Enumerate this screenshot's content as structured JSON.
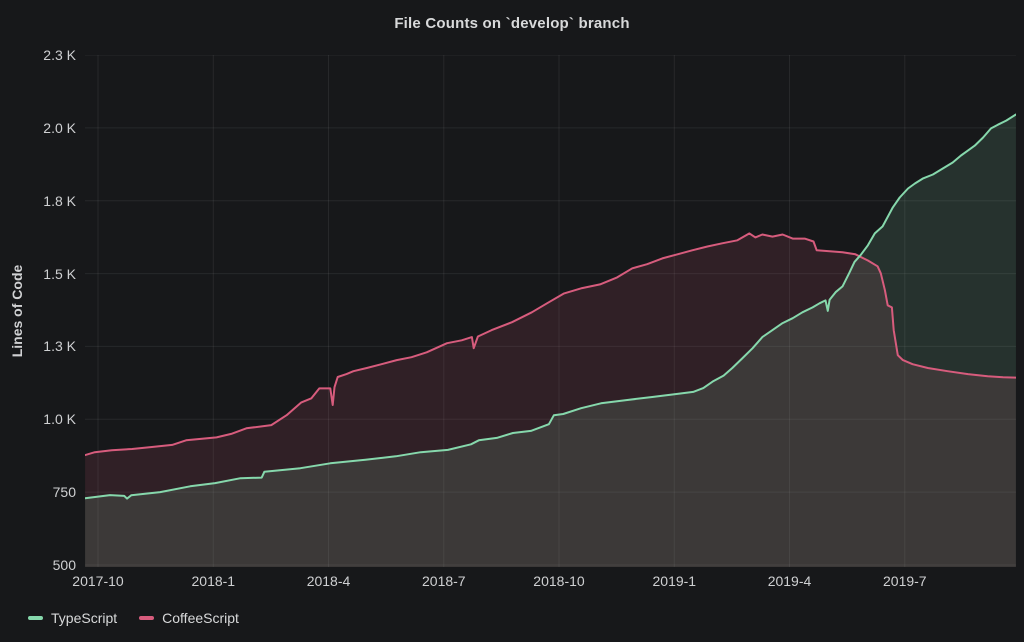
{
  "title": "File Counts on `develop` branch",
  "colors": {
    "background": "#17181a",
    "grid": "rgba(255,255,255,0.07)",
    "text": "#d8d9da",
    "tick_text": "#cfd0d2",
    "typescript_green": "#86d8ac",
    "coffeescript_pink": "#d75c7d"
  },
  "chart_data": {
    "type": "area",
    "title": "File Counts on `develop` branch",
    "xlabel": "",
    "ylabel": "Lines of Code",
    "grid": true,
    "legend_position": "bottom-left",
    "x_domain": [
      2017.7218,
      2019.7413
    ],
    "y_domain": [
      500,
      2250
    ],
    "x_ticks": [
      {
        "t": 2017.75,
        "label": "2017-10"
      },
      {
        "t": 2018.0,
        "label": "2018-1"
      },
      {
        "t": 2018.25,
        "label": "2018-4"
      },
      {
        "t": 2018.5,
        "label": "2018-7"
      },
      {
        "t": 2018.75,
        "label": "2018-10"
      },
      {
        "t": 2019.0,
        "label": "2019-1"
      },
      {
        "t": 2019.25,
        "label": "2019-4"
      },
      {
        "t": 2019.5,
        "label": "2019-7"
      }
    ],
    "y_ticks": [
      {
        "v": 500,
        "label": "500"
      },
      {
        "v": 750,
        "label": "750"
      },
      {
        "v": 1000,
        "label": "1.0 K"
      },
      {
        "v": 1250,
        "label": "1.3 K"
      },
      {
        "v": 1500,
        "label": "1.5 K"
      },
      {
        "v": 1750,
        "label": "1.8 K"
      },
      {
        "v": 2000,
        "label": "2.0 K"
      },
      {
        "v": 2250,
        "label": "2.3 K"
      }
    ],
    "series": [
      {
        "name": "TypeScript",
        "color": "#86d8ac",
        "fill_opacity": 0.14,
        "points": [
          [
            2017.722,
            729
          ],
          [
            2017.776,
            740
          ],
          [
            2017.807,
            737
          ],
          [
            2017.813,
            728
          ],
          [
            2017.822,
            739
          ],
          [
            2017.885,
            750
          ],
          [
            2017.95,
            770
          ],
          [
            2018.004,
            781
          ],
          [
            2018.059,
            798
          ],
          [
            2018.105,
            800
          ],
          [
            2018.111,
            820
          ],
          [
            2018.189,
            832
          ],
          [
            2018.254,
            849
          ],
          [
            2018.33,
            861
          ],
          [
            2018.396,
            873
          ],
          [
            2018.45,
            887
          ],
          [
            2018.509,
            895
          ],
          [
            2018.559,
            914
          ],
          [
            2018.576,
            928
          ],
          [
            2018.615,
            936
          ],
          [
            2018.65,
            953
          ],
          [
            2018.689,
            960
          ],
          [
            2018.728,
            983
          ],
          [
            2018.739,
            1014
          ],
          [
            2018.759,
            1018
          ],
          [
            2018.798,
            1038
          ],
          [
            2018.841,
            1055
          ],
          [
            2018.896,
            1066
          ],
          [
            2018.95,
            1076
          ],
          [
            2019.007,
            1087
          ],
          [
            2019.041,
            1094
          ],
          [
            2019.063,
            1107
          ],
          [
            2019.085,
            1131
          ],
          [
            2019.107,
            1150
          ],
          [
            2019.126,
            1176
          ],
          [
            2019.148,
            1210
          ],
          [
            2019.17,
            1244
          ],
          [
            2019.191,
            1282
          ],
          [
            2019.213,
            1306
          ],
          [
            2019.235,
            1330
          ],
          [
            2019.257,
            1347
          ],
          [
            2019.278,
            1367
          ],
          [
            2019.3,
            1384
          ],
          [
            2019.315,
            1398
          ],
          [
            2019.328,
            1408
          ],
          [
            2019.333,
            1372
          ],
          [
            2019.337,
            1410
          ],
          [
            2019.35,
            1436
          ],
          [
            2019.365,
            1456
          ],
          [
            2019.38,
            1503
          ],
          [
            2019.391,
            1540
          ],
          [
            2019.404,
            1563
          ],
          [
            2019.42,
            1597
          ],
          [
            2019.435,
            1638
          ],
          [
            2019.452,
            1662
          ],
          [
            2019.474,
            1727
          ],
          [
            2019.489,
            1761
          ],
          [
            2019.507,
            1792
          ],
          [
            2019.522,
            1809
          ],
          [
            2019.539,
            1826
          ],
          [
            2019.561,
            1840
          ],
          [
            2019.583,
            1861
          ],
          [
            2019.604,
            1881
          ],
          [
            2019.622,
            1905
          ],
          [
            2019.637,
            1922
          ],
          [
            2019.652,
            1939
          ],
          [
            2019.67,
            1967
          ],
          [
            2019.687,
            1998
          ],
          [
            2019.702,
            2011
          ],
          [
            2019.72,
            2025
          ],
          [
            2019.741,
            2046
          ]
        ]
      },
      {
        "name": "CoffeeScript",
        "color": "#d75c7d",
        "fill_opacity": 0.13,
        "points": [
          [
            2017.722,
            877
          ],
          [
            2017.743,
            887
          ],
          [
            2017.78,
            894
          ],
          [
            2017.824,
            898
          ],
          [
            2017.867,
            905
          ],
          [
            2017.911,
            912
          ],
          [
            2017.941,
            928
          ],
          [
            2018.007,
            938
          ],
          [
            2018.039,
            950
          ],
          [
            2018.072,
            969
          ],
          [
            2018.126,
            980
          ],
          [
            2018.159,
            1014
          ],
          [
            2018.191,
            1058
          ],
          [
            2018.213,
            1072
          ],
          [
            2018.23,
            1106
          ],
          [
            2018.254,
            1106
          ],
          [
            2018.259,
            1049
          ],
          [
            2018.263,
            1110
          ],
          [
            2018.27,
            1145
          ],
          [
            2018.289,
            1155
          ],
          [
            2018.304,
            1165
          ],
          [
            2018.333,
            1176
          ],
          [
            2018.365,
            1189
          ],
          [
            2018.398,
            1203
          ],
          [
            2018.43,
            1213
          ],
          [
            2018.463,
            1230
          ],
          [
            2018.507,
            1261
          ],
          [
            2018.539,
            1271
          ],
          [
            2018.561,
            1282
          ],
          [
            2018.565,
            1244
          ],
          [
            2018.574,
            1284
          ],
          [
            2018.604,
            1306
          ],
          [
            2018.648,
            1333
          ],
          [
            2018.691,
            1367
          ],
          [
            2018.724,
            1398
          ],
          [
            2018.761,
            1432
          ],
          [
            2018.8,
            1450
          ],
          [
            2018.839,
            1463
          ],
          [
            2018.876,
            1487
          ],
          [
            2018.909,
            1518
          ],
          [
            2018.941,
            1532
          ],
          [
            2018.974,
            1552
          ],
          [
            2019.007,
            1566
          ],
          [
            2019.039,
            1580
          ],
          [
            2019.072,
            1593
          ],
          [
            2019.104,
            1604
          ],
          [
            2019.137,
            1614
          ],
          [
            2019.163,
            1638
          ],
          [
            2019.176,
            1624
          ],
          [
            2019.191,
            1634
          ],
          [
            2019.213,
            1627
          ],
          [
            2019.235,
            1634
          ],
          [
            2019.257,
            1620
          ],
          [
            2019.283,
            1620
          ],
          [
            2019.302,
            1610
          ],
          [
            2019.309,
            1580
          ],
          [
            2019.365,
            1573
          ],
          [
            2019.393,
            1566
          ],
          [
            2019.42,
            1545
          ],
          [
            2019.441,
            1525
          ],
          [
            2019.448,
            1501
          ],
          [
            2019.457,
            1443
          ],
          [
            2019.463,
            1391
          ],
          [
            2019.472,
            1384
          ],
          [
            2019.476,
            1306
          ],
          [
            2019.485,
            1220
          ],
          [
            2019.496,
            1203
          ],
          [
            2019.517,
            1189
          ],
          [
            2019.55,
            1176
          ],
          [
            2019.593,
            1165
          ],
          [
            2019.637,
            1155
          ],
          [
            2019.68,
            1148
          ],
          [
            2019.713,
            1144
          ],
          [
            2019.741,
            1143
          ]
        ]
      }
    ]
  }
}
